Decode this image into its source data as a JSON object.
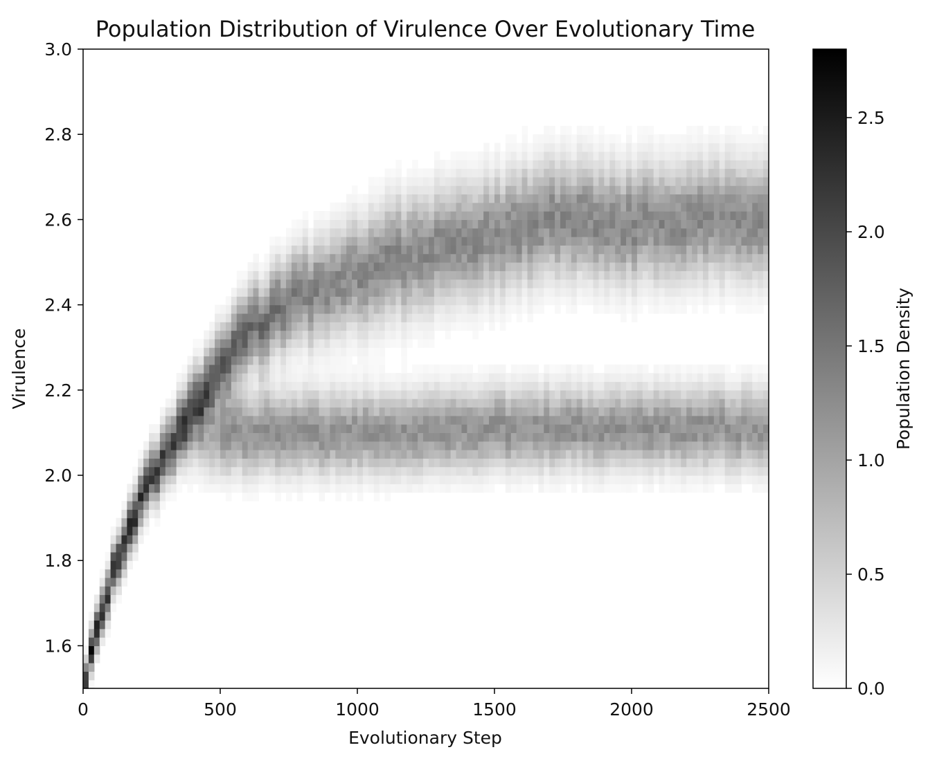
{
  "chart_data": {
    "type": "heatmap",
    "title": "Population Distribution of Virulence Over Evolutionary Time",
    "xlabel": "Evolutionary Step",
    "ylabel": "Virulence",
    "xlim": [
      0,
      2500
    ],
    "ylim": [
      1.5,
      3.0
    ],
    "xticks": [
      "0",
      "500",
      "1000",
      "1500",
      "2000",
      "2500"
    ],
    "yticks": [
      "1.6",
      "1.8",
      "2.0",
      "2.2",
      "2.4",
      "2.6",
      "2.8",
      "3.0"
    ],
    "colorbar": {
      "label": "Population Density",
      "range": [
        0.0,
        2.8
      ],
      "ticks": [
        "0.0",
        "0.5",
        "1.0",
        "1.5",
        "2.0",
        "2.5"
      ],
      "colormap": "gray_r"
    },
    "series": [
      {
        "name": "upper-branch",
        "x": [
          0,
          100,
          200,
          300,
          400,
          500,
          600,
          700,
          800,
          1000,
          1200,
          1500,
          1700,
          2000,
          2500
        ],
        "y": [
          1.5,
          1.76,
          1.93,
          2.05,
          2.16,
          2.26,
          2.33,
          2.38,
          2.42,
          2.47,
          2.52,
          2.56,
          2.6,
          2.59,
          2.6
        ]
      },
      {
        "name": "lower-branch",
        "x": [
          350,
          450,
          500,
          700,
          1000,
          1500,
          2000,
          2500
        ],
        "y": [
          2.08,
          2.1,
          2.1,
          2.1,
          2.1,
          2.11,
          2.11,
          2.11
        ]
      }
    ],
    "grid": false,
    "legend": "none"
  },
  "colors": {
    "ink": "#000000",
    "background": "#ffffff"
  }
}
